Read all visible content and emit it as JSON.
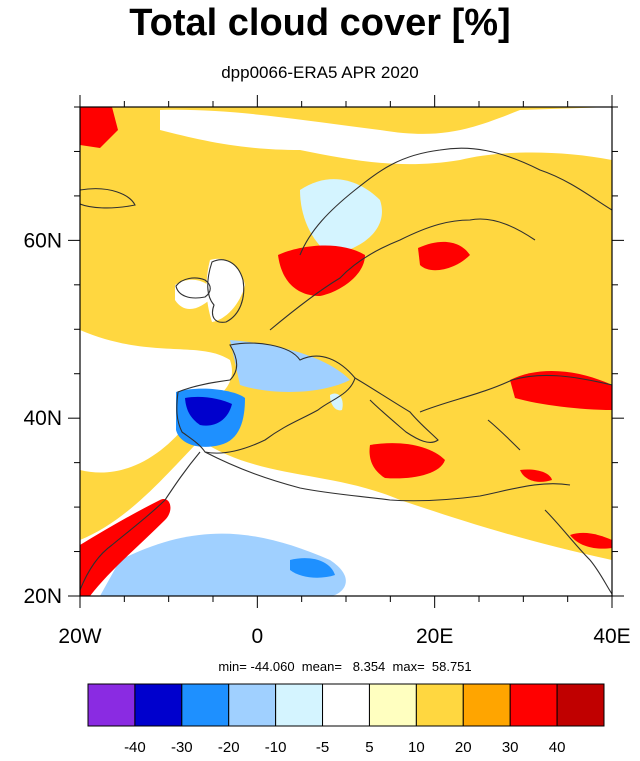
{
  "title": "Total cloud cover [%]",
  "subtitle": "dpp0066-ERA5 APR 2020",
  "stats": "min= -44.060  mean=   8.354  max=  58.751",
  "map": {
    "lon_range": [
      -20,
      40
    ],
    "lat_range": [
      20,
      75
    ],
    "lon_ticks": [
      {
        "v": -20,
        "t": "20W"
      },
      {
        "v": 0,
        "t": "0"
      },
      {
        "v": 20,
        "t": "20E"
      },
      {
        "v": 40,
        "t": "40E"
      }
    ],
    "lat_ticks": [
      {
        "v": 20,
        "t": "20N"
      },
      {
        "v": 40,
        "t": "40N"
      },
      {
        "v": 60,
        "t": "60N"
      }
    ]
  },
  "colorbar": {
    "colors": [
      "#8a2be2",
      "#0000cd",
      "#1e90ff",
      "#a0d0ff",
      "#d4f4ff",
      "#ffffff",
      "#ffffc0",
      "#ffd740",
      "#ffa500",
      "#ff0000",
      "#c00000"
    ],
    "labels": [
      "-40",
      "-30",
      "-20",
      "-10",
      "-5",
      "5",
      "10",
      "20",
      "30",
      "40"
    ]
  }
}
